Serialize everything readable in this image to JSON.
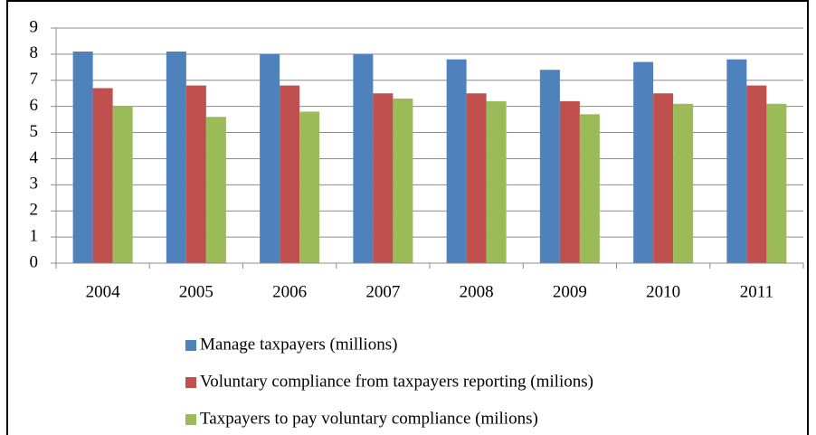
{
  "chart_data": {
    "type": "bar",
    "categories": [
      "2004",
      "2005",
      "2006",
      "2007",
      "2008",
      "2009",
      "2010",
      "2011"
    ],
    "series": [
      {
        "name": "Manage taxpayers (millions)",
        "color": "#4f81bd",
        "values": [
          8.1,
          8.1,
          8.0,
          8.0,
          7.8,
          7.4,
          7.7,
          7.8
        ]
      },
      {
        "name": "Voluntary compliance from taxpayers reporting (milions)",
        "color": "#c0504d",
        "values": [
          6.7,
          6.8,
          6.8,
          6.5,
          6.5,
          6.2,
          6.5,
          6.8
        ]
      },
      {
        "name": "Taxpayers to pay voluntary compliance (milions)",
        "color": "#9bbb59",
        "values": [
          6.0,
          5.6,
          5.8,
          6.3,
          6.2,
          5.7,
          6.1,
          6.1
        ]
      }
    ],
    "ylim": [
      0,
      9
    ],
    "yticks": [
      0,
      1,
      2,
      3,
      4,
      5,
      6,
      7,
      8,
      9
    ],
    "grid": true,
    "legend": "bottom"
  }
}
